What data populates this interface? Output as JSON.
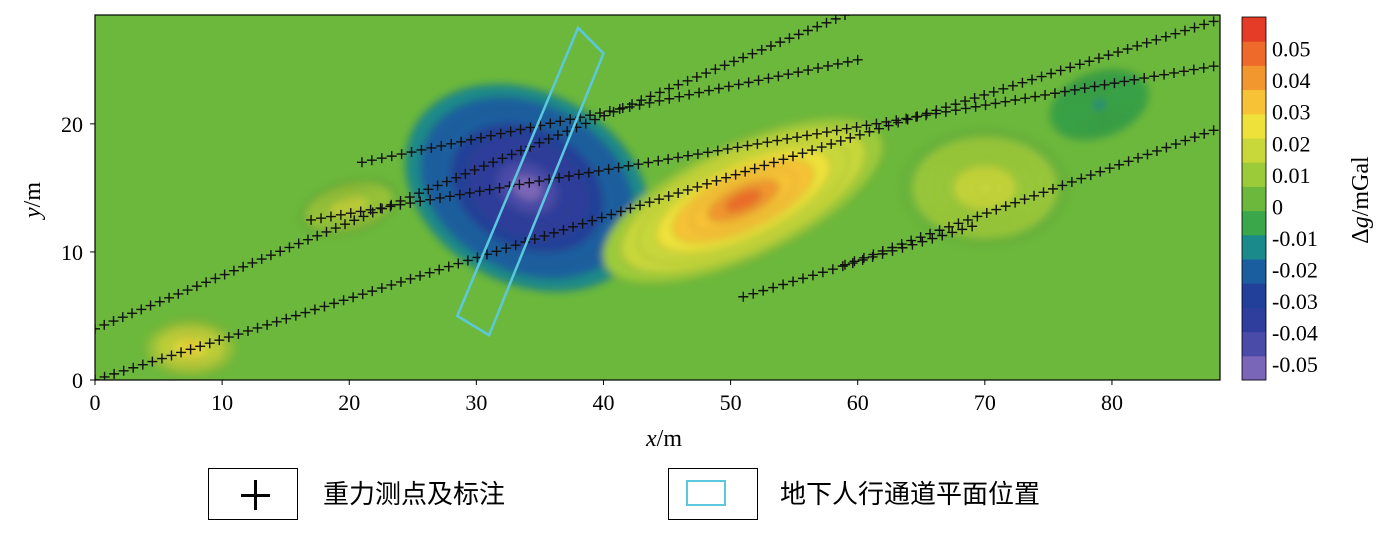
{
  "chart_data": {
    "type": "heatmap",
    "title": "",
    "xlabel": "x/m",
    "ylabel": "y/m",
    "xlim": [
      0,
      88.5
    ],
    "ylim": [
      0,
      28.5
    ],
    "x_ticks": [
      0,
      10,
      20,
      30,
      40,
      50,
      60,
      70,
      80
    ],
    "y_ticks": [
      0,
      10,
      20
    ],
    "colorbar": {
      "label": "Δg/mGal",
      "range": [
        -0.055,
        0.06
      ],
      "ticks": [
        0.05,
        0.04,
        0.03,
        0.02,
        0.01,
        0,
        -0.01,
        -0.02,
        -0.03,
        -0.04,
        -0.05
      ],
      "colors": [
        "#7a66b8",
        "#4a4aa8",
        "#2f3d9c",
        "#223f9a",
        "#1a5ea0",
        "#1a8a8a",
        "#3aa84a",
        "#6cb83c",
        "#9ccb3a",
        "#c8d83a",
        "#eee23a",
        "#f8c236",
        "#f2962e",
        "#ee6a2a",
        "#e43c26"
      ]
    },
    "anomalies": [
      {
        "label": "negative (low)",
        "x": 34,
        "y": 15,
        "value": -0.05
      },
      {
        "label": "positive (high)",
        "x": 51,
        "y": 14,
        "value": 0.045
      },
      {
        "label": "positive",
        "x": 7.5,
        "y": 2.5,
        "value": 0.03
      },
      {
        "label": "positive",
        "x": 70,
        "y": 15,
        "value": 0.02
      },
      {
        "label": "positive",
        "x": 20,
        "y": 13.5,
        "value": 0.02
      },
      {
        "label": "negative",
        "x": 79,
        "y": 21.5,
        "value": -0.01
      }
    ],
    "survey_lines": [
      {
        "from": [
          0,
          4
        ],
        "to": [
          59,
          28.5
        ]
      },
      {
        "from": [
          0,
          0
        ],
        "to": [
          88,
          28
        ]
      },
      {
        "from": [
          17,
          12.5
        ],
        "to": [
          88,
          24.5
        ]
      },
      {
        "from": [
          21,
          17
        ],
        "to": [
          60,
          25
        ]
      },
      {
        "from": [
          51,
          6.5
        ],
        "to": [
          69,
          12
        ]
      },
      {
        "from": [
          59,
          9
        ],
        "to": [
          88,
          19.5
        ]
      }
    ],
    "tunnel_polygon": [
      [
        28.5,
        5
      ],
      [
        38,
        27.5
      ],
      [
        40,
        25.5
      ],
      [
        31,
        3.5
      ]
    ]
  },
  "legend": {
    "items": [
      {
        "label": "重力测点及标注"
      },
      {
        "label": "地下人行通道平面位置"
      }
    ]
  }
}
